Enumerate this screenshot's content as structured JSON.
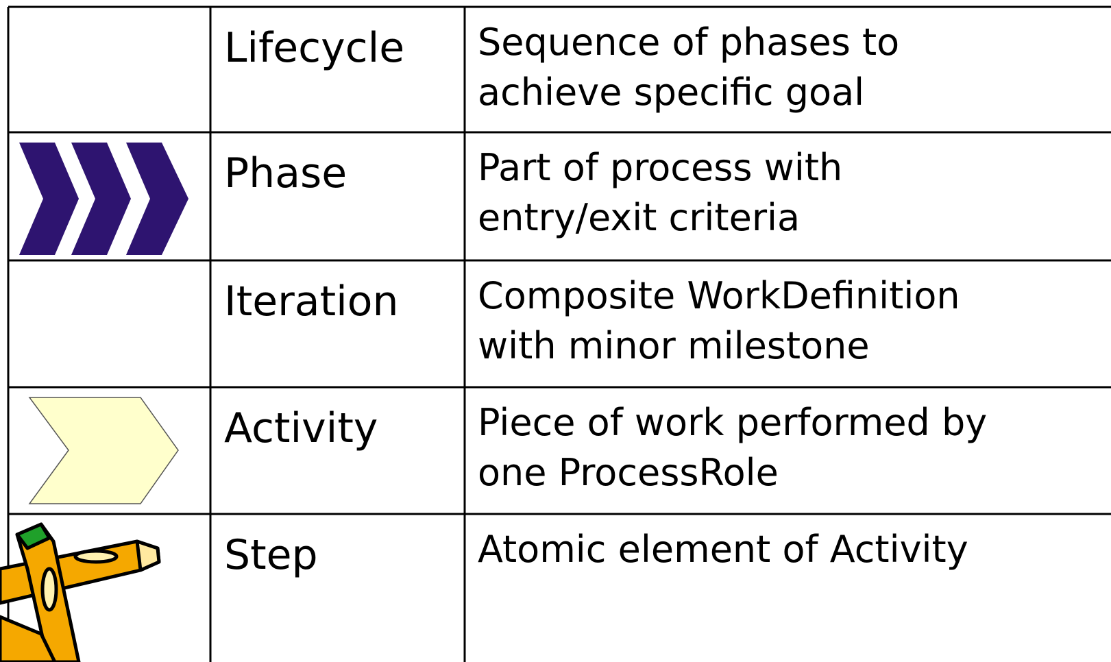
{
  "table": {
    "rows": [
      {
        "term": "Lifecycle",
        "description": [
          "Sequence of phases to",
          "achieve specific goal"
        ]
      },
      {
        "term": "Phase",
        "description": [
          "Part of process with",
          "entry/exit criteria"
        ]
      },
      {
        "term": "Iteration",
        "description": [
          "Composite WorkDefinition",
          "with minor milestone"
        ]
      },
      {
        "term": "Activity",
        "description": [
          "Piece of work performed by",
          "one ProcessRole"
        ]
      },
      {
        "term": "Step",
        "description": [
          "Atomic element of Activity"
        ]
      }
    ]
  }
}
